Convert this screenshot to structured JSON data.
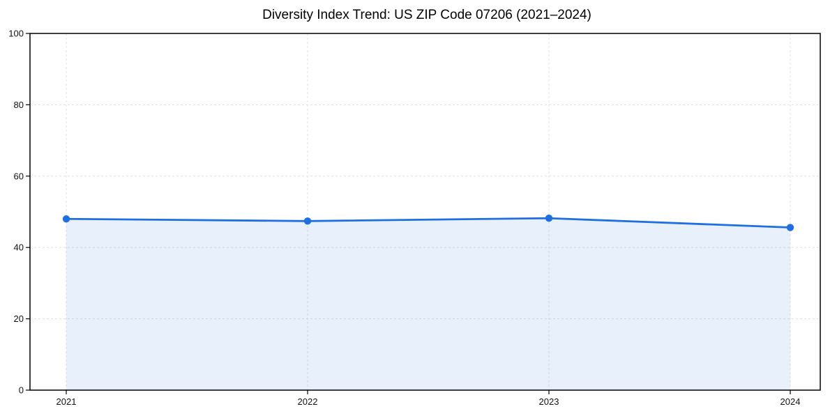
{
  "chart_data": {
    "type": "area",
    "title": "Diversity Index Trend: US ZIP Code 07206 (2021–2024)",
    "x": [
      "2021",
      "2022",
      "2023",
      "2024"
    ],
    "values": [
      48.0,
      47.4,
      48.2,
      45.6
    ],
    "series_name": "Diversity Index",
    "xlabel": "",
    "ylabel": "",
    "ylim": [
      0,
      100
    ],
    "yticks": [
      0,
      20,
      40,
      60,
      80,
      100
    ],
    "grid": "dashed-both-axes",
    "legend": "none",
    "marker": "circle",
    "colors": {
      "line": "#1f6fe0",
      "marker": "#1f6fe0",
      "fill": "#1f6fe0",
      "fill_opacity": 0.1,
      "grid": "#e0e0e0",
      "axis": "#000000",
      "background": "#ffffff",
      "text": "#000000"
    }
  }
}
